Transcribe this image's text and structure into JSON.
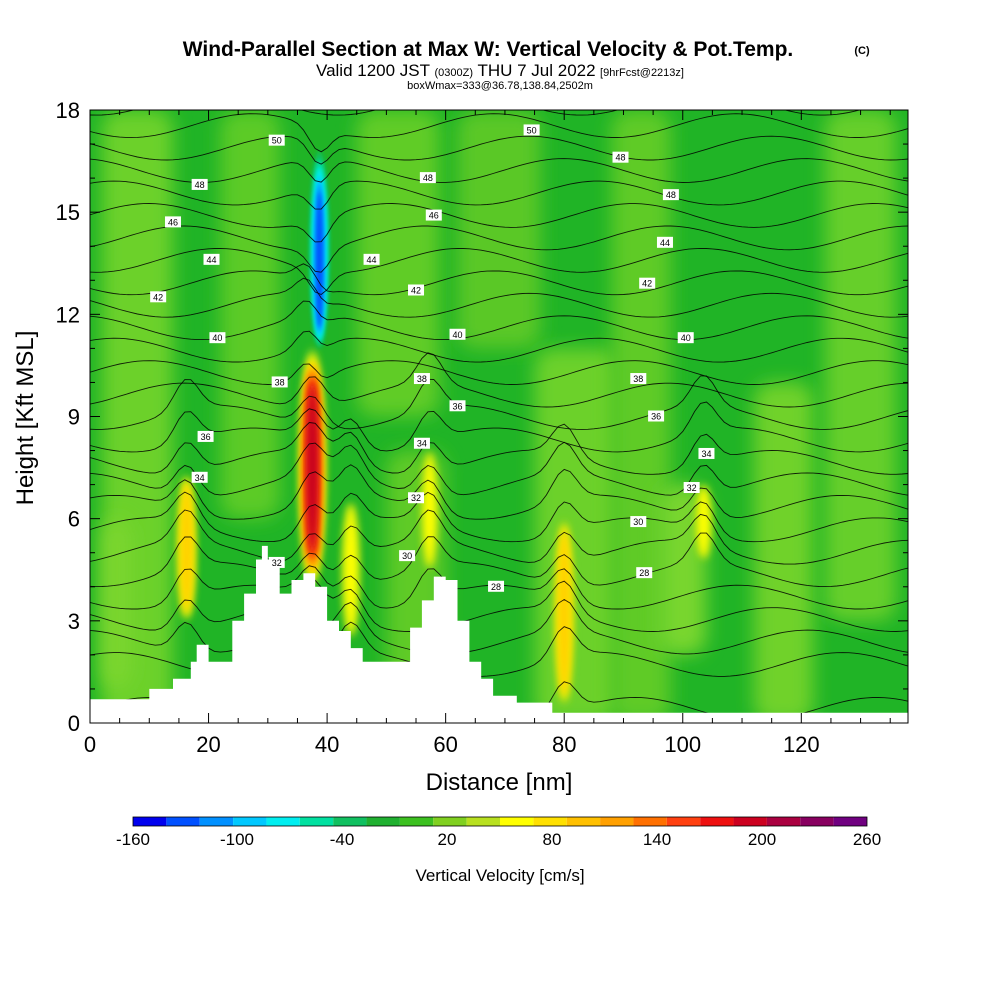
{
  "chart_data": {
    "type": "heatmap",
    "title": "Wind-Parallel Section at Max W: Vertical Velocity & Pot.Temp.",
    "title_mark": "(C)",
    "subtitle_parts": [
      "Valid 1200 JST",
      "(0300Z)",
      "THU 7 Jul 2022",
      "[9hrFcst@2213z]"
    ],
    "subtitle2": "boxWmax=333@36.78,138.84,2502m",
    "xlabel": "Distance [nm]",
    "ylabel": "Height [Kft MSL]",
    "xlim": [
      0,
      138
    ],
    "ylim": [
      0,
      18
    ],
    "x_ticks": [
      "0",
      "20",
      "40",
      "60",
      "80",
      "100",
      "120"
    ],
    "y_ticks": [
      "0",
      "3",
      "6",
      "9",
      "12",
      "15",
      "18"
    ],
    "colorbar": {
      "label": "Vertical Velocity [cm/s]",
      "tick_labels": [
        "-160",
        "-100",
        "-40",
        "20",
        "80",
        "140",
        "200",
        "260"
      ],
      "colors": [
        "#0000ee",
        "#0050ff",
        "#0090ff",
        "#00c8ff",
        "#00eef0",
        "#00e0a0",
        "#10c060",
        "#20b030",
        "#3cc020",
        "#80d020",
        "#b8e020",
        "#ffff00",
        "#ffe000",
        "#ffc000",
        "#ffa000",
        "#ff7000",
        "#ff4010",
        "#ee1010",
        "#cc0020",
        "#aa0040",
        "#880060",
        "#700080"
      ]
    },
    "terrain": [
      [
        0,
        0.7
      ],
      [
        5,
        0.7
      ],
      [
        10,
        1
      ],
      [
        14,
        1.3
      ],
      [
        17,
        1.8
      ],
      [
        18,
        2.3
      ],
      [
        20,
        1.8
      ],
      [
        22,
        1.8
      ],
      [
        24,
        3
      ],
      [
        26,
        3.8
      ],
      [
        28,
        4.8
      ],
      [
        29,
        5.2
      ],
      [
        30,
        4.8
      ],
      [
        32,
        3.8
      ],
      [
        34,
        4.2
      ],
      [
        36,
        4.4
      ],
      [
        38,
        4
      ],
      [
        40,
        3
      ],
      [
        42,
        2.7
      ],
      [
        44,
        2.2
      ],
      [
        46,
        1.8
      ],
      [
        48,
        1.8
      ],
      [
        50,
        1.8
      ],
      [
        52,
        1.8
      ],
      [
        54,
        2.8
      ],
      [
        56,
        3.6
      ],
      [
        58,
        4.3
      ],
      [
        60,
        4.2
      ],
      [
        62,
        3
      ],
      [
        64,
        1.8
      ],
      [
        66,
        1.3
      ],
      [
        68,
        0.8
      ],
      [
        72,
        0.6
      ],
      [
        78,
        0.3
      ],
      [
        85,
        0.3
      ],
      [
        95,
        0.3
      ],
      [
        105,
        0.3
      ],
      [
        120,
        0.3
      ],
      [
        138,
        0.3
      ]
    ],
    "updrafts": [
      {
        "x": 16.3,
        "z_bottom": 3.0,
        "z_top": 7.3,
        "w_max": 80
      },
      {
        "x": 37.5,
        "z_bottom": 4.0,
        "z_top": 11.0,
        "w_max": 230
      },
      {
        "x": 44.0,
        "z_bottom": 2.5,
        "z_top": 6.5,
        "w_max": 70
      },
      {
        "x": 57.3,
        "z_bottom": 4.5,
        "z_top": 8.0,
        "w_max": 50
      },
      {
        "x": 80.0,
        "z_bottom": 0.5,
        "z_top": 6.0,
        "w_max": 85
      },
      {
        "x": 103.5,
        "z_bottom": 4.8,
        "z_top": 7.0,
        "w_max": 50
      }
    ],
    "downdrafts": [
      {
        "x": 38.7,
        "z_bottom": 11.0,
        "z_top": 16.8,
        "w_min": -120
      }
    ],
    "theta_labels": [
      {
        "text": "50",
        "x": 31.5,
        "y": 17.1
      },
      {
        "text": "50",
        "x": 74.5,
        "y": 17.4
      },
      {
        "text": "48",
        "x": 18.5,
        "y": 15.8
      },
      {
        "text": "48",
        "x": 57.0,
        "y": 16.0
      },
      {
        "text": "48",
        "x": 89.5,
        "y": 16.6
      },
      {
        "text": "48",
        "x": 98.0,
        "y": 15.5
      },
      {
        "text": "46",
        "x": 14.0,
        "y": 14.7
      },
      {
        "text": "46",
        "x": 58.0,
        "y": 14.9
      },
      {
        "text": "44",
        "x": 20.5,
        "y": 13.6
      },
      {
        "text": "44",
        "x": 47.5,
        "y": 13.6
      },
      {
        "text": "44",
        "x": 97.0,
        "y": 14.1
      },
      {
        "text": "42",
        "x": 11.5,
        "y": 12.5
      },
      {
        "text": "42",
        "x": 55.0,
        "y": 12.7
      },
      {
        "text": "42",
        "x": 94.0,
        "y": 12.9
      },
      {
        "text": "40",
        "x": 21.5,
        "y": 11.3
      },
      {
        "text": "40",
        "x": 62.0,
        "y": 11.4
      },
      {
        "text": "40",
        "x": 100.5,
        "y": 11.3
      },
      {
        "text": "38",
        "x": 32.0,
        "y": 10.0
      },
      {
        "text": "38",
        "x": 56.0,
        "y": 10.1
      },
      {
        "text": "38",
        "x": 92.5,
        "y": 10.1
      },
      {
        "text": "36",
        "x": 19.5,
        "y": 8.4
      },
      {
        "text": "36",
        "x": 62.0,
        "y": 9.3
      },
      {
        "text": "36",
        "x": 95.5,
        "y": 9.0
      },
      {
        "text": "34",
        "x": 18.5,
        "y": 7.2
      },
      {
        "text": "34",
        "x": 56.0,
        "y": 8.2
      },
      {
        "text": "34",
        "x": 104.0,
        "y": 7.9
      },
      {
        "text": "32",
        "x": 55.0,
        "y": 6.6
      },
      {
        "text": "32",
        "x": 101.5,
        "y": 6.9
      },
      {
        "text": "32",
        "x": 31.5,
        "y": 4.7
      },
      {
        "text": "30",
        "x": 53.5,
        "y": 4.9
      },
      {
        "text": "30",
        "x": 92.5,
        "y": 5.9
      },
      {
        "text": "28",
        "x": 68.5,
        "y": 4.0
      },
      {
        "text": "28",
        "x": 93.5,
        "y": 4.4
      }
    ],
    "theta_levels": [
      24,
      26,
      27,
      28,
      29,
      30,
      31,
      32,
      33,
      34,
      35,
      36,
      37,
      38,
      39,
      40,
      41,
      42,
      43,
      44,
      45,
      46,
      47,
      48,
      49,
      50,
      51
    ]
  }
}
